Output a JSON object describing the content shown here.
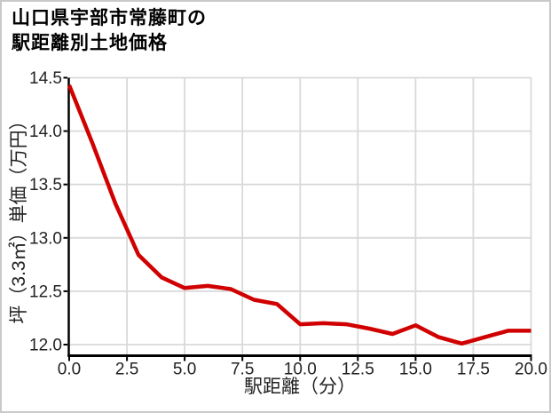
{
  "title": {
    "line1": "山口県宇部市常藤町の",
    "line2": "駅距離別土地価格"
  },
  "chart_data": {
    "type": "line",
    "title": "山口県宇部市常藤町の駅距離別土地価格",
    "xlabel": "駅距離（分）",
    "ylabel": "坪（3.3㎡）単価（万円）",
    "x": [
      0,
      1,
      2,
      3,
      4,
      5,
      6,
      7,
      8,
      9,
      10,
      11,
      12,
      13,
      14,
      15,
      16,
      17,
      18,
      19,
      20
    ],
    "values": [
      14.43,
      13.89,
      13.32,
      12.84,
      12.63,
      12.53,
      12.55,
      12.52,
      12.42,
      12.38,
      12.19,
      12.2,
      12.19,
      12.15,
      12.1,
      12.18,
      12.07,
      12.01,
      12.07,
      12.13,
      12.13
    ],
    "xticks": [
      0,
      2.5,
      5,
      7.5,
      10,
      12.5,
      15,
      17.5,
      20
    ],
    "xtick_labels": [
      "0.0",
      "2.5",
      "5.0",
      "7.5",
      "10.0",
      "12.5",
      "15.0",
      "17.5",
      "20.0"
    ],
    "yticks": [
      12.0,
      12.5,
      13.0,
      13.5,
      14.0,
      14.5
    ],
    "ytick_labels": [
      "12.0",
      "12.5",
      "13.0",
      "13.5",
      "14.0",
      "14.5"
    ],
    "xlim": [
      0,
      20
    ],
    "ylim": [
      11.9,
      14.5
    ],
    "grid": true,
    "legend": "none",
    "line_color": "#d10000"
  },
  "colors": {
    "line": "#d10000",
    "grid": "#d9d9d9",
    "axis": "#000000",
    "tick_text": "#222222",
    "background": "#ffffff",
    "frame_border": "#c9c9c9"
  }
}
